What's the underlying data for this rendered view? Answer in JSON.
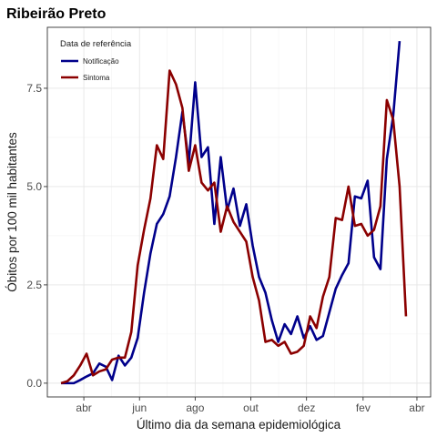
{
  "chart_data": {
    "type": "line",
    "title": "Ribeirão Preto",
    "xlabel": "Último dia da semana epidemiológica",
    "ylabel": "Óbitos por 100 mil habitantes",
    "ylim": [
      -0.35,
      9.05
    ],
    "xlim": [
      "2020-02-21",
      "2021-04-16"
    ],
    "x_tick_labels": [
      {
        "date": "2020-04-01",
        "label": "abr"
      },
      {
        "date": "2020-06-01",
        "label": "jun"
      },
      {
        "date": "2020-08-01",
        "label": "ago"
      },
      {
        "date": "2020-10-01",
        "label": "out"
      },
      {
        "date": "2020-12-01",
        "label": "dez"
      },
      {
        "date": "2021-02-01",
        "label": "fev"
      },
      {
        "date": "2021-04-01",
        "label": "abr"
      }
    ],
    "y_ticks": [
      0,
      2.5,
      5,
      7.5
    ],
    "y_tick_labels": [
      "0.0",
      "2.5",
      "5.0",
      "7.5"
    ],
    "grid": true,
    "legend": {
      "title": "Data de referência",
      "placement": "top-left"
    },
    "series": [
      {
        "name": "Notificação",
        "color": "#00008B",
        "points": [
          [
            "2020-03-07",
            0.0
          ],
          [
            "2020-03-14",
            0.0
          ],
          [
            "2020-03-21",
            0.0
          ],
          [
            "2020-03-28",
            0.08
          ],
          [
            "2020-04-04",
            0.17
          ],
          [
            "2020-04-11",
            0.25
          ],
          [
            "2020-04-18",
            0.5
          ],
          [
            "2020-04-25",
            0.42
          ],
          [
            "2020-05-02",
            0.08
          ],
          [
            "2020-05-09",
            0.7
          ],
          [
            "2020-05-16",
            0.45
          ],
          [
            "2020-05-23",
            0.65
          ],
          [
            "2020-05-30",
            1.15
          ],
          [
            "2020-06-06",
            2.3
          ],
          [
            "2020-06-13",
            3.3
          ],
          [
            "2020-06-20",
            4.05
          ],
          [
            "2020-06-27",
            4.3
          ],
          [
            "2020-07-04",
            4.75
          ],
          [
            "2020-07-11",
            5.75
          ],
          [
            "2020-07-18",
            6.9
          ],
          [
            "2020-07-25",
            5.6
          ],
          [
            "2020-08-01",
            7.65
          ],
          [
            "2020-08-08",
            5.75
          ],
          [
            "2020-08-15",
            6.0
          ],
          [
            "2020-08-22",
            4.05
          ],
          [
            "2020-08-29",
            5.75
          ],
          [
            "2020-09-05",
            4.4
          ],
          [
            "2020-09-12",
            4.95
          ],
          [
            "2020-09-19",
            4.0
          ],
          [
            "2020-09-26",
            4.55
          ],
          [
            "2020-10-03",
            3.5
          ],
          [
            "2020-10-10",
            2.7
          ],
          [
            "2020-10-17",
            2.3
          ],
          [
            "2020-10-24",
            1.6
          ],
          [
            "2020-10-31",
            1.05
          ],
          [
            "2020-11-07",
            1.5
          ],
          [
            "2020-11-14",
            1.25
          ],
          [
            "2020-11-21",
            1.7
          ],
          [
            "2020-11-28",
            1.15
          ],
          [
            "2020-12-05",
            1.45
          ],
          [
            "2020-12-12",
            1.1
          ],
          [
            "2020-12-19",
            1.2
          ],
          [
            "2020-12-26",
            1.8
          ],
          [
            "2021-01-02",
            2.4
          ],
          [
            "2021-01-09",
            2.75
          ],
          [
            "2021-01-16",
            3.05
          ],
          [
            "2021-01-23",
            4.75
          ],
          [
            "2021-01-30",
            4.7
          ],
          [
            "2021-02-06",
            5.15
          ],
          [
            "2021-02-13",
            3.2
          ],
          [
            "2021-02-20",
            2.9
          ],
          [
            "2021-02-27",
            5.7
          ],
          [
            "2021-03-06",
            6.8
          ],
          [
            "2021-03-13",
            8.7
          ]
        ]
      },
      {
        "name": "Sintoma",
        "color": "#8B0000",
        "points": [
          [
            "2020-03-07",
            0.0
          ],
          [
            "2020-03-14",
            0.05
          ],
          [
            "2020-03-21",
            0.2
          ],
          [
            "2020-03-28",
            0.45
          ],
          [
            "2020-04-04",
            0.75
          ],
          [
            "2020-04-11",
            0.2
          ],
          [
            "2020-04-18",
            0.3
          ],
          [
            "2020-04-25",
            0.35
          ],
          [
            "2020-05-02",
            0.6
          ],
          [
            "2020-05-09",
            0.65
          ],
          [
            "2020-05-16",
            0.65
          ],
          [
            "2020-05-23",
            1.3
          ],
          [
            "2020-05-30",
            3.0
          ],
          [
            "2020-06-06",
            3.9
          ],
          [
            "2020-06-13",
            4.7
          ],
          [
            "2020-06-20",
            6.05
          ],
          [
            "2020-06-27",
            5.7
          ],
          [
            "2020-07-04",
            7.95
          ],
          [
            "2020-07-11",
            7.6
          ],
          [
            "2020-07-18",
            7.0
          ],
          [
            "2020-07-25",
            5.4
          ],
          [
            "2020-08-01",
            6.05
          ],
          [
            "2020-08-08",
            5.1
          ],
          [
            "2020-08-15",
            4.9
          ],
          [
            "2020-08-22",
            5.1
          ],
          [
            "2020-08-29",
            3.85
          ],
          [
            "2020-09-05",
            4.5
          ],
          [
            "2020-09-12",
            4.1
          ],
          [
            "2020-09-19",
            3.85
          ],
          [
            "2020-09-26",
            3.6
          ],
          [
            "2020-10-03",
            2.7
          ],
          [
            "2020-10-10",
            2.1
          ],
          [
            "2020-10-17",
            1.05
          ],
          [
            "2020-10-24",
            1.1
          ],
          [
            "2020-10-31",
            0.95
          ],
          [
            "2020-11-07",
            1.05
          ],
          [
            "2020-11-14",
            0.75
          ],
          [
            "2020-11-21",
            0.8
          ],
          [
            "2020-11-28",
            0.95
          ],
          [
            "2020-12-05",
            1.7
          ],
          [
            "2020-12-12",
            1.4
          ],
          [
            "2020-12-19",
            2.2
          ],
          [
            "2020-12-26",
            2.7
          ],
          [
            "2021-01-02",
            4.2
          ],
          [
            "2021-01-09",
            4.15
          ],
          [
            "2021-01-16",
            5.0
          ],
          [
            "2021-01-23",
            4.0
          ],
          [
            "2021-01-30",
            4.05
          ],
          [
            "2021-02-06",
            3.75
          ],
          [
            "2021-02-13",
            3.9
          ],
          [
            "2021-02-20",
            4.5
          ],
          [
            "2021-02-27",
            7.2
          ],
          [
            "2021-03-06",
            6.7
          ],
          [
            "2021-03-13",
            5.0
          ],
          [
            "2021-03-20",
            1.7
          ]
        ]
      }
    ]
  }
}
